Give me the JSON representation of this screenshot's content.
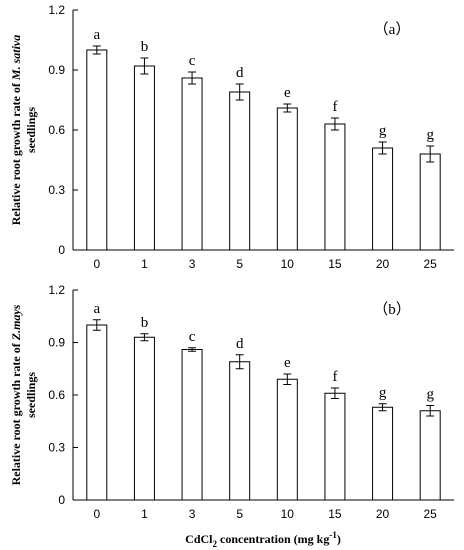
{
  "chart_data": [
    {
      "type": "bar",
      "panel_label": "（a）",
      "ylabel": {
        "prefix": "Relative root growth rate of ",
        "species": "M. sativa",
        "line2": "seedlings"
      },
      "categories": [
        "0",
        "1",
        "3",
        "5",
        "10",
        "15",
        "20",
        "25"
      ],
      "values": [
        1.0,
        0.92,
        0.86,
        0.79,
        0.71,
        0.63,
        0.51,
        0.48
      ],
      "errors": [
        0.02,
        0.04,
        0.03,
        0.04,
        0.02,
        0.03,
        0.03,
        0.04
      ],
      "letters": [
        "a",
        "b",
        "c",
        "d",
        "e",
        "f",
        "g",
        "g"
      ],
      "ylim": [
        0,
        1.2
      ],
      "yticks": [
        "0",
        "0.3",
        "0.6",
        "0.9",
        "1.2"
      ],
      "grid": false
    },
    {
      "type": "bar",
      "panel_label": "（b）",
      "ylabel": {
        "prefix": "Relative root growth rate of ",
        "species": "Z.mays",
        "line2": "seedlings"
      },
      "categories": [
        "0",
        "1",
        "3",
        "5",
        "10",
        "15",
        "20",
        "25"
      ],
      "values": [
        1.0,
        0.93,
        0.86,
        0.79,
        0.69,
        0.61,
        0.53,
        0.51
      ],
      "errors": [
        0.03,
        0.02,
        0.01,
        0.04,
        0.03,
        0.03,
        0.02,
        0.03
      ],
      "letters": [
        "a",
        "b",
        "c",
        "d",
        "e",
        "f",
        "g",
        "g"
      ],
      "ylim": [
        0,
        1.2
      ],
      "yticks": [
        "0",
        "0.3",
        "0.6",
        "0.9",
        "1.2"
      ],
      "grid": false
    }
  ],
  "xlabel": {
    "main": "CdCl",
    "sub": "2",
    "rest": " concentration (mg kg",
    "sup": "-1",
    "end": ")"
  }
}
